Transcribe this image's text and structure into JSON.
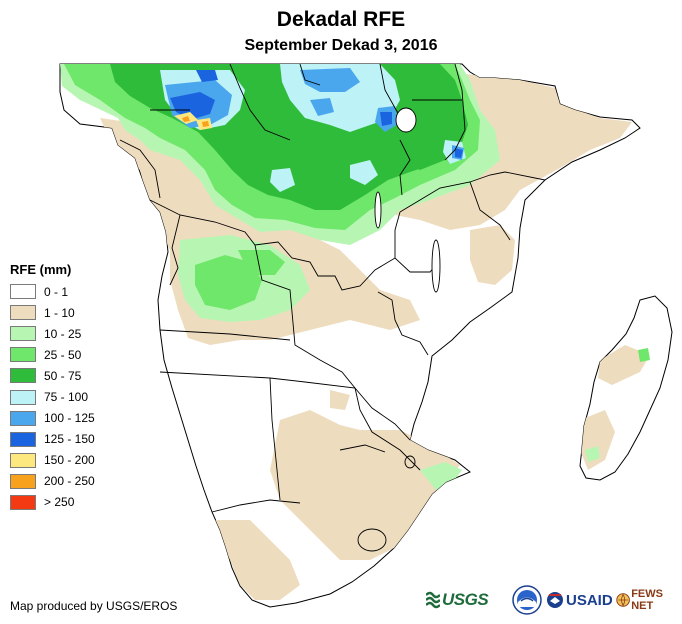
{
  "title": "Dekadal RFE",
  "subtitle": "September Dekad 3, 2016",
  "legend": {
    "title": "RFE (mm)",
    "classes": [
      {
        "label": "0 - 1",
        "color": "#ffffff"
      },
      {
        "label": "1 - 10",
        "color": "#eedcbf"
      },
      {
        "label": "10 - 25",
        "color": "#b7f6b2"
      },
      {
        "label": "25 - 50",
        "color": "#6fe76a"
      },
      {
        "label": "50 - 75",
        "color": "#2fbc3a"
      },
      {
        "label": "75 - 100",
        "color": "#bdf2f6"
      },
      {
        "label": "100 - 125",
        "color": "#4aa7ee"
      },
      {
        "label": "125 - 150",
        "color": "#1a64e0"
      },
      {
        "label": "150 - 200",
        "color": "#fde87f"
      },
      {
        "label": "200 - 250",
        "color": "#f7a11d"
      },
      {
        "label": "> 250",
        "color": "#f33a12"
      }
    ]
  },
  "credit": "Map produced by USGS/EROS",
  "logos": {
    "usgs": "USGS",
    "usaid": "USAID",
    "fews": "FEWS NET"
  },
  "colors": {
    "border": "#000000",
    "water": "#ffffff"
  }
}
